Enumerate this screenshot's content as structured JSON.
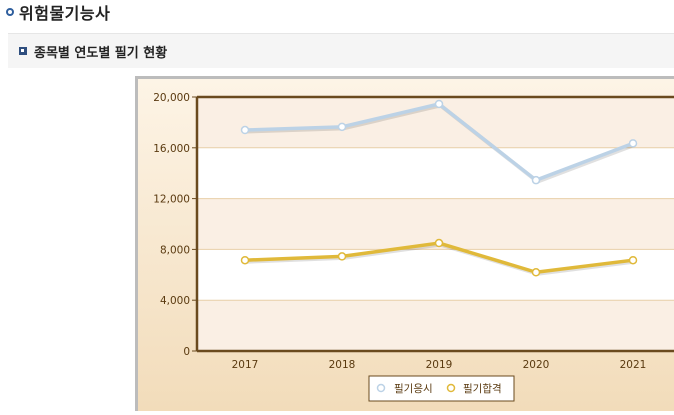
{
  "page": {
    "title": "위험물기능사"
  },
  "section": {
    "title": "종목별 연도별 필기 현황"
  },
  "chart_data": {
    "type": "line",
    "categories": [
      "2017",
      "2018",
      "2019",
      "2020",
      "2021"
    ],
    "series": [
      {
        "name": "필기응시",
        "values": [
          17400,
          17650,
          19450,
          13450,
          16350
        ],
        "color": "#bcd2e6"
      },
      {
        "name": "필기합격",
        "values": [
          7150,
          7450,
          8500,
          6200,
          7150
        ],
        "color": "#e0b93a"
      }
    ],
    "y_ticks": [
      "0",
      "4,000",
      "8,000",
      "12,000",
      "16,000",
      "20,000"
    ],
    "ylim": [
      0,
      20000
    ],
    "legend": "bottom",
    "grid": true
  }
}
